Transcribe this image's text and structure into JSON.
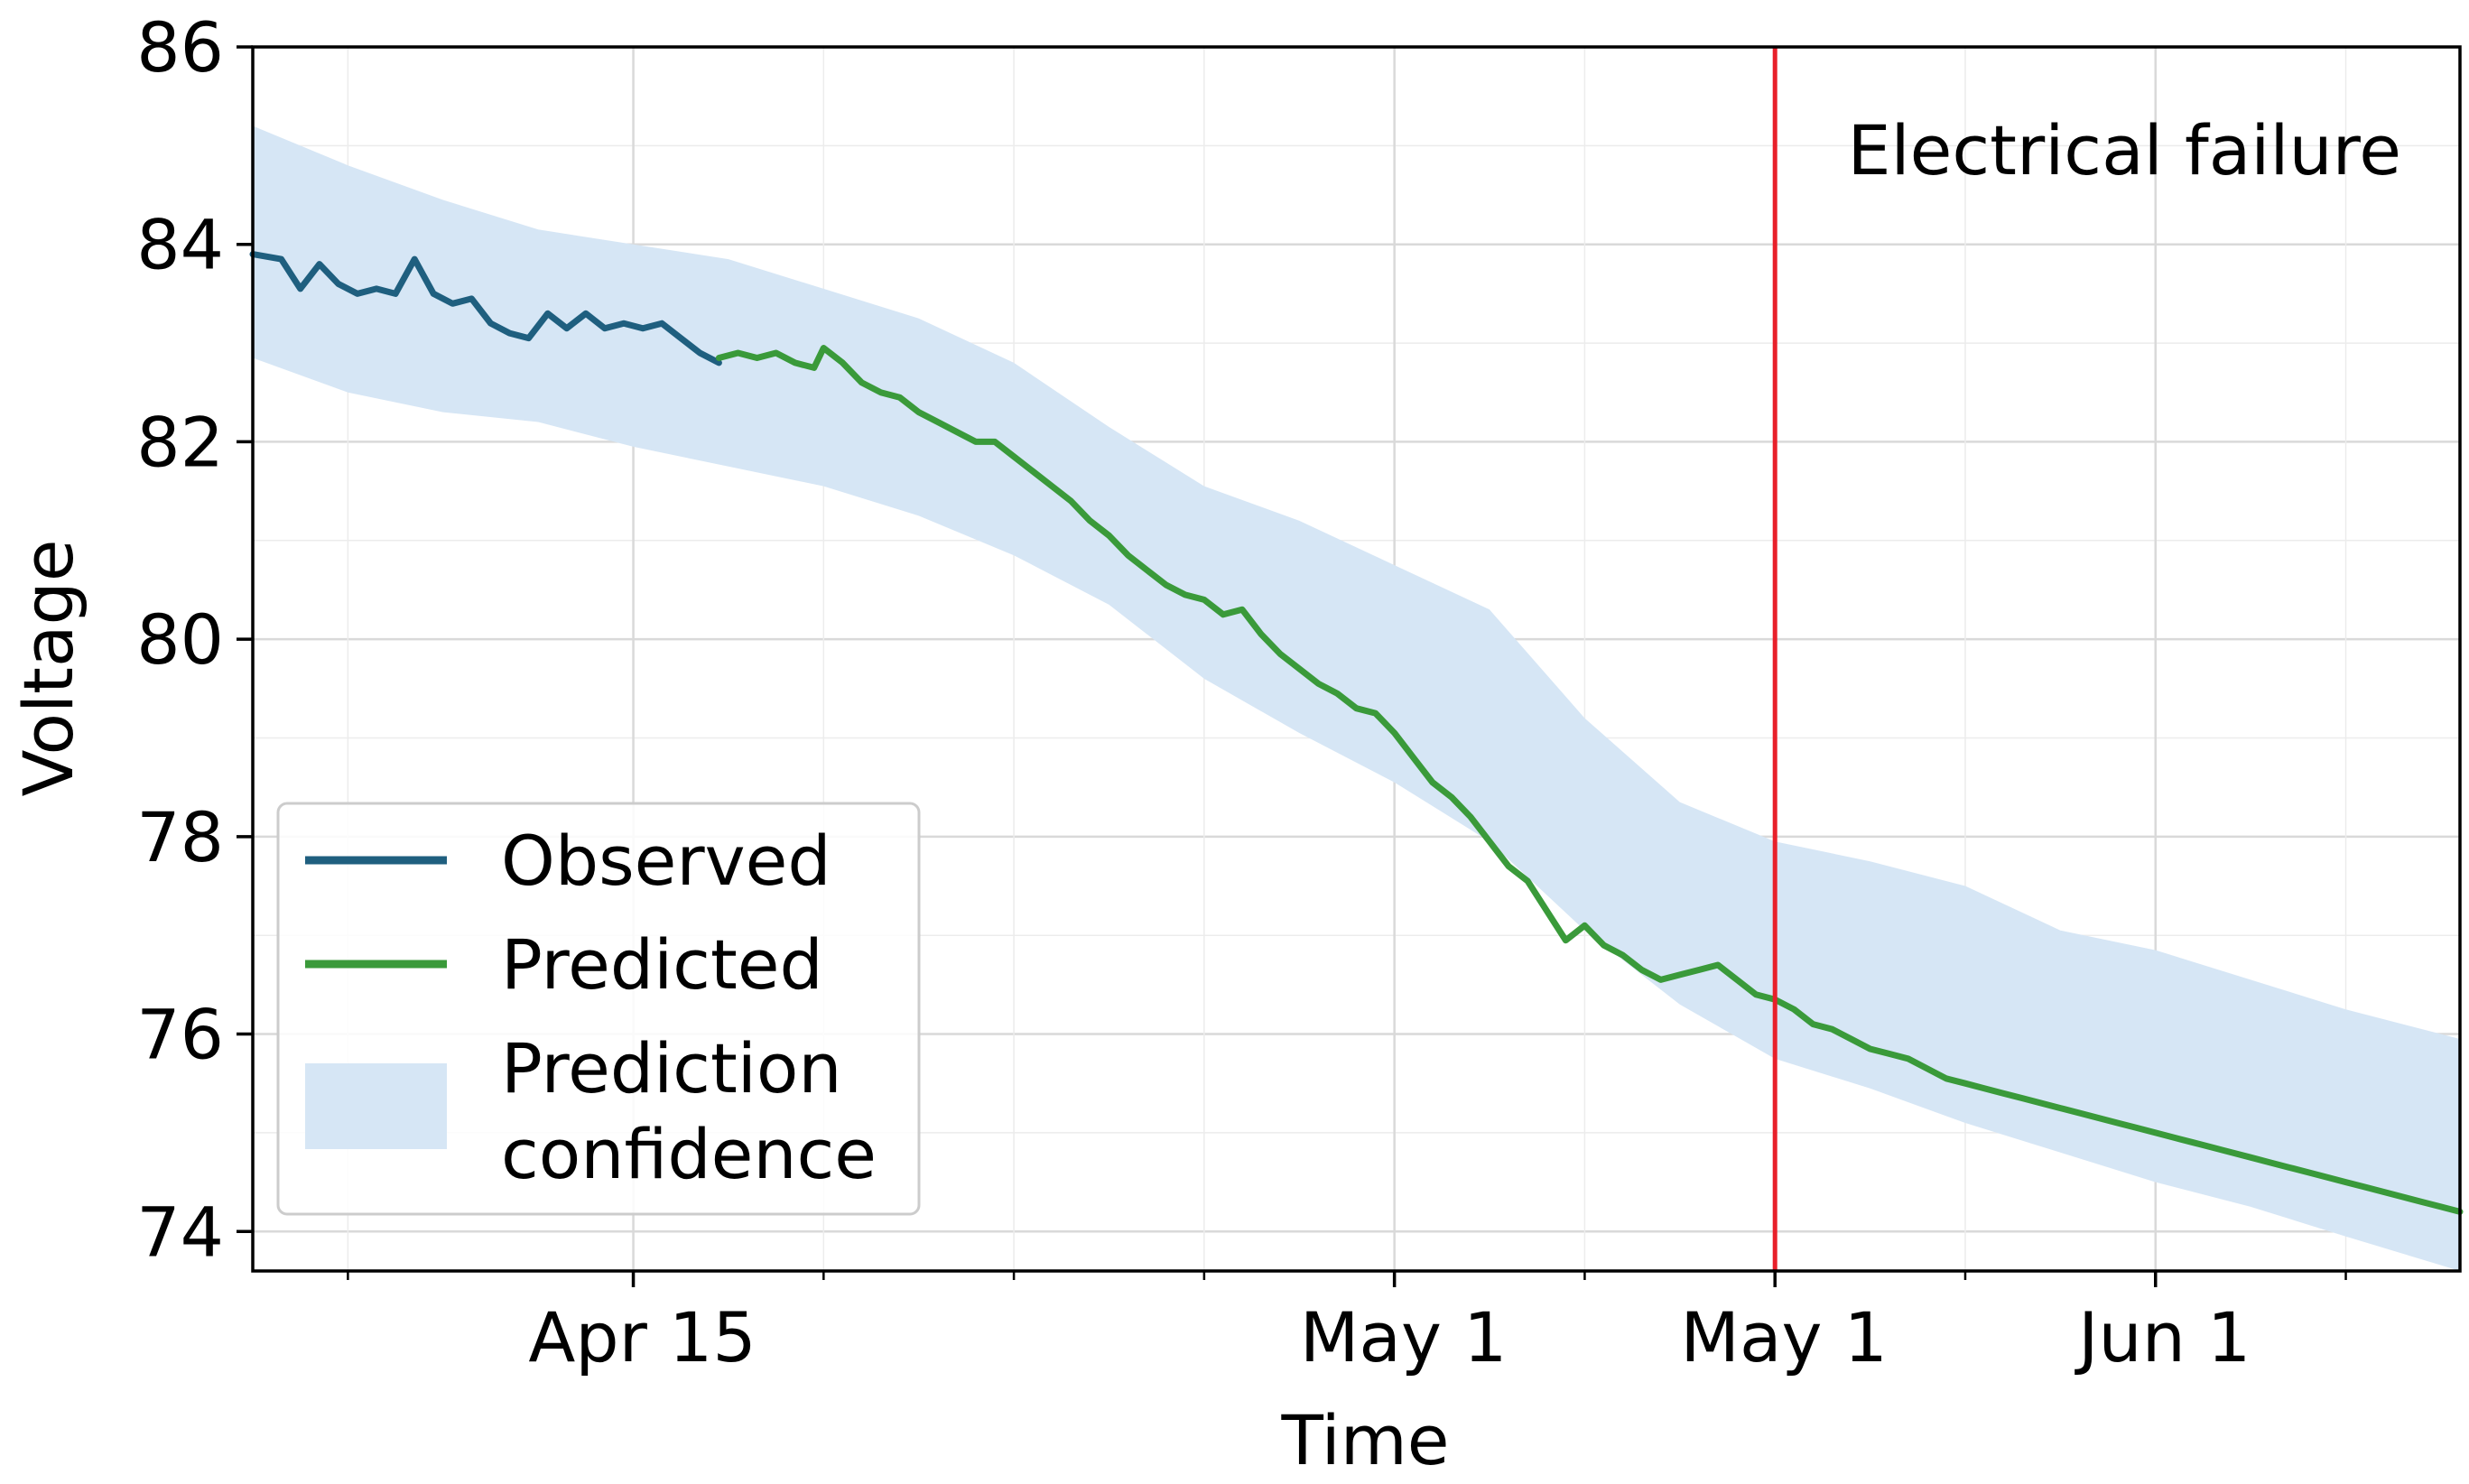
{
  "chart_data": {
    "type": "line",
    "xlabel": "Time",
    "ylabel": "Voltage",
    "ylim": [
      73.6,
      86
    ],
    "xlim": [
      -2.0,
      9.6
    ],
    "y_ticks": [
      74,
      76,
      78,
      80,
      82,
      84,
      86
    ],
    "x_ticks": [
      {
        "label": "Apr 15",
        "pos": 0
      },
      {
        "label": "May 1",
        "pos": 4
      },
      {
        "label": "May 1",
        "pos": 6
      },
      {
        "label": "Jun 1",
        "pos": 8
      }
    ],
    "x_minor_ticks": [
      -1.5,
      1,
      2,
      3,
      5,
      7,
      9
    ],
    "grid": true,
    "legend_position": "lower-left",
    "annotation": {
      "text": "Electrical failure",
      "x": 6
    },
    "series": [
      {
        "name": "Observed",
        "color": "#1f5f7f",
        "x": [
          -2.0,
          -1.85,
          -1.75,
          -1.65,
          -1.55,
          -1.45,
          -1.35,
          -1.25,
          -1.15,
          -1.05,
          -0.95,
          -0.85,
          -0.75,
          -0.65,
          -0.55,
          -0.45,
          -0.35,
          -0.25,
          -0.15,
          -0.05,
          0.05,
          0.15,
          0.25,
          0.35,
          0.45
        ],
        "values": [
          83.9,
          83.85,
          83.55,
          83.8,
          83.6,
          83.5,
          83.55,
          83.5,
          83.85,
          83.5,
          83.4,
          83.45,
          83.2,
          83.1,
          83.05,
          83.3,
          83.15,
          83.3,
          83.15,
          83.2,
          83.15,
          83.2,
          83.05,
          82.9,
          82.8
        ]
      },
      {
        "name": "Predicted",
        "color": "#3a9a3a",
        "x": [
          0.45,
          0.55,
          0.65,
          0.75,
          0.85,
          0.95,
          1.0,
          1.1,
          1.2,
          1.3,
          1.4,
          1.5,
          1.6,
          1.7,
          1.8,
          1.9,
          2.0,
          2.1,
          2.2,
          2.3,
          2.4,
          2.5,
          2.6,
          2.7,
          2.8,
          2.9,
          3.0,
          3.1,
          3.2,
          3.3,
          3.4,
          3.5,
          3.6,
          3.7,
          3.8,
          3.9,
          4.0,
          4.1,
          4.2,
          4.3,
          4.4,
          4.5,
          4.6,
          4.7,
          4.8,
          4.9,
          5.0,
          5.1,
          5.2,
          5.3,
          5.4,
          5.5,
          5.6,
          5.7,
          5.8,
          5.9,
          6.0,
          6.1,
          6.2,
          6.3,
          6.4,
          6.5,
          6.6,
          6.7,
          6.8,
          6.9,
          7.0,
          7.1,
          7.2,
          7.3,
          7.4,
          7.5,
          7.6,
          7.7,
          7.8,
          7.9,
          8.0,
          8.1,
          8.2,
          8.3,
          8.4,
          8.5,
          8.6,
          8.7,
          8.8,
          8.9,
          9.0,
          9.1,
          9.2,
          9.3,
          9.4,
          9.5,
          9.6
        ],
        "values": [
          82.85,
          82.9,
          82.85,
          82.9,
          82.8,
          82.75,
          82.95,
          82.8,
          82.6,
          82.5,
          82.45,
          82.3,
          82.2,
          82.1,
          82.0,
          82.0,
          81.85,
          81.7,
          81.55,
          81.4,
          81.2,
          81.05,
          80.85,
          80.7,
          80.55,
          80.45,
          80.4,
          80.25,
          80.3,
          80.05,
          79.85,
          79.7,
          79.55,
          79.45,
          79.3,
          79.25,
          79.05,
          78.8,
          78.55,
          78.4,
          78.2,
          77.95,
          77.7,
          77.55,
          77.25,
          76.95,
          77.1,
          76.9,
          76.8,
          76.65,
          76.55,
          76.6,
          76.65,
          76.7,
          76.55,
          76.4,
          76.35,
          76.25,
          76.1,
          76.05,
          75.95,
          75.85,
          75.8,
          75.75,
          75.65,
          75.55,
          75.5,
          75.45,
          75.4,
          75.35,
          75.3,
          75.25,
          75.2,
          75.15,
          75.1,
          75.05,
          75.0,
          74.95,
          74.9,
          74.85,
          74.8,
          74.75,
          74.7,
          74.65,
          74.6,
          74.55,
          74.5,
          74.45,
          74.4,
          74.35,
          74.3,
          74.25,
          74.2
        ],
        "_comment": ""
      }
    ],
    "confidence_band": {
      "name": "Prediction confidence",
      "color": "#d6e6f5",
      "x": [
        -2.0,
        -1.5,
        -1.0,
        -0.5,
        0.0,
        0.5,
        1.0,
        1.5,
        2.0,
        2.5,
        3.0,
        3.5,
        4.0,
        4.5,
        5.0,
        5.5,
        6.0,
        6.5,
        7.0,
        7.5,
        8.0,
        8.5,
        9.0,
        9.6
      ],
      "upper": [
        85.2,
        84.8,
        84.45,
        84.15,
        84.0,
        83.85,
        83.55,
        83.25,
        82.8,
        82.15,
        81.55,
        81.2,
        80.75,
        80.3,
        79.2,
        78.35,
        77.95,
        77.75,
        77.5,
        77.05,
        76.85,
        76.55,
        76.25,
        75.95
      ],
      "lower": [
        82.85,
        82.5,
        82.3,
        82.2,
        81.95,
        81.75,
        81.55,
        81.25,
        80.85,
        80.35,
        79.6,
        79.05,
        78.55,
        77.95,
        77.05,
        76.3,
        75.75,
        75.45,
        75.1,
        74.8,
        74.5,
        74.25,
        73.95,
        73.6
      ]
    }
  },
  "legend": {
    "items": [
      {
        "label": "Observed",
        "kind": "line",
        "color": "#1f5f7f"
      },
      {
        "label": "Predicted",
        "kind": "line",
        "color": "#3a9a3a"
      },
      {
        "label_line1": "Prediction",
        "label_line2": "confidence",
        "kind": "patch",
        "color": "#d6e6f5"
      }
    ]
  },
  "colors": {
    "failure_line": "#e8202a",
    "grid": "#d9d9d9",
    "axes": "#000000"
  }
}
